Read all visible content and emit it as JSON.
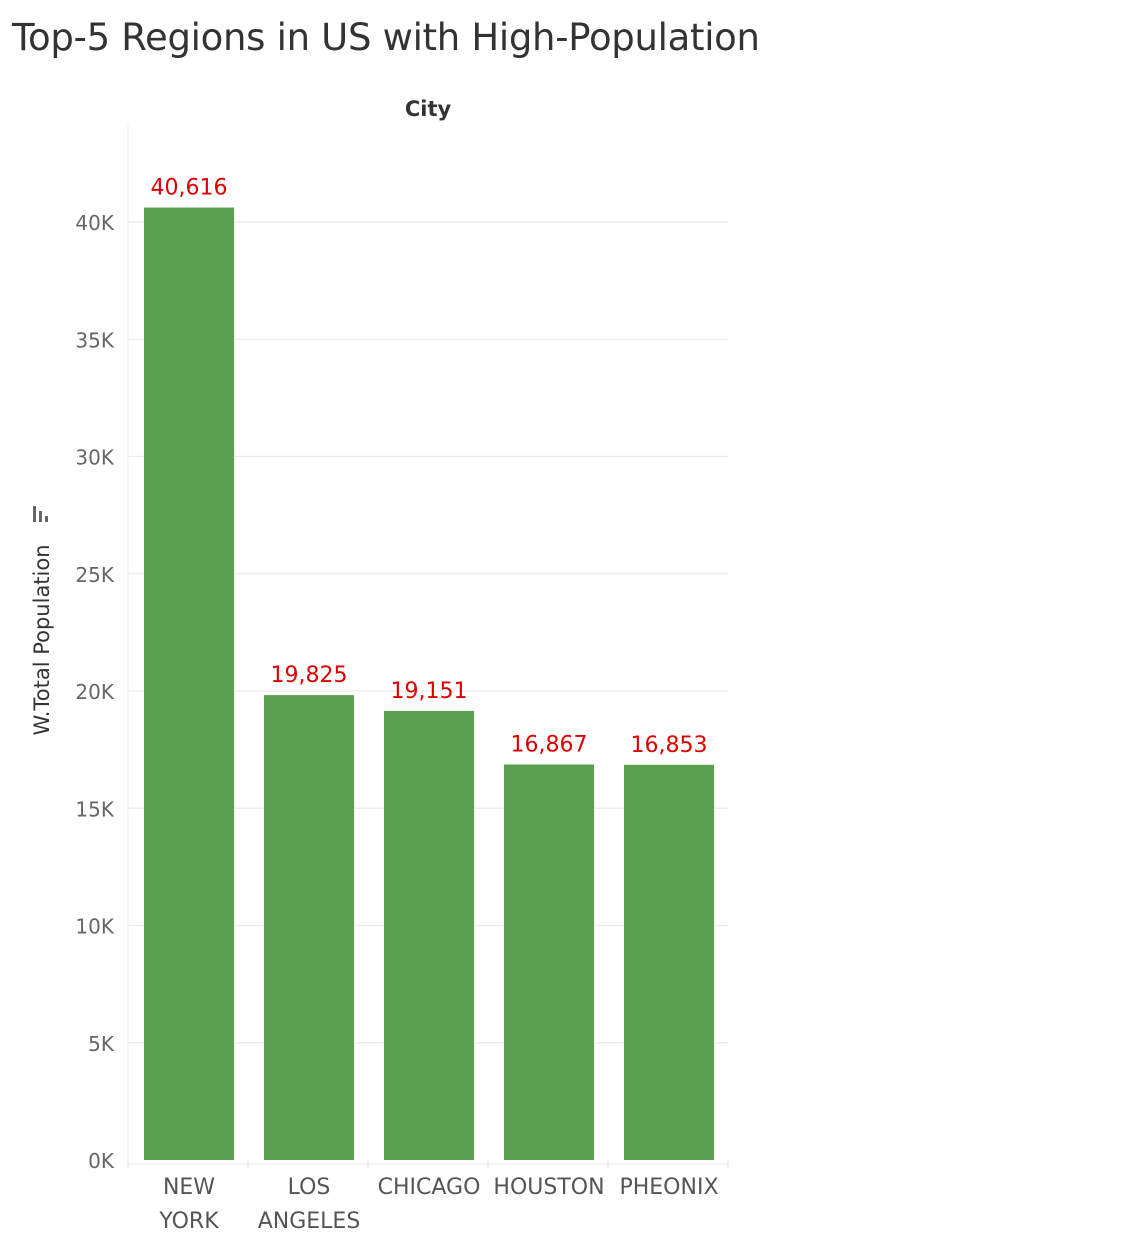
{
  "title": "Top-5 Regions in US with High-Population",
  "chart_data": {
    "type": "bar",
    "title": "Top-5 Regions in US with High-Population",
    "column_header": "City",
    "xlabel": "",
    "ylabel": "W.Total Population",
    "categories": [
      [
        "NEW",
        "YORK"
      ],
      [
        "LOS",
        "ANGELES"
      ],
      [
        "CHICAGO"
      ],
      [
        "HOUSTON"
      ],
      [
        "PHEONIX"
      ]
    ],
    "values": [
      40616,
      19825,
      19151,
      16867,
      16853
    ],
    "data_labels": [
      "40,616",
      "19,825",
      "19,151",
      "16,867",
      "16,853"
    ],
    "yticks": [
      "0K",
      "5K",
      "10K",
      "15K",
      "20K",
      "25K",
      "30K",
      "35K",
      "40K"
    ],
    "ylim": [
      0,
      40000
    ],
    "grid": true,
    "bar_color": "#5aa14f",
    "label_color": "#dd0000",
    "sort_icon": "sort-descending-icon"
  }
}
